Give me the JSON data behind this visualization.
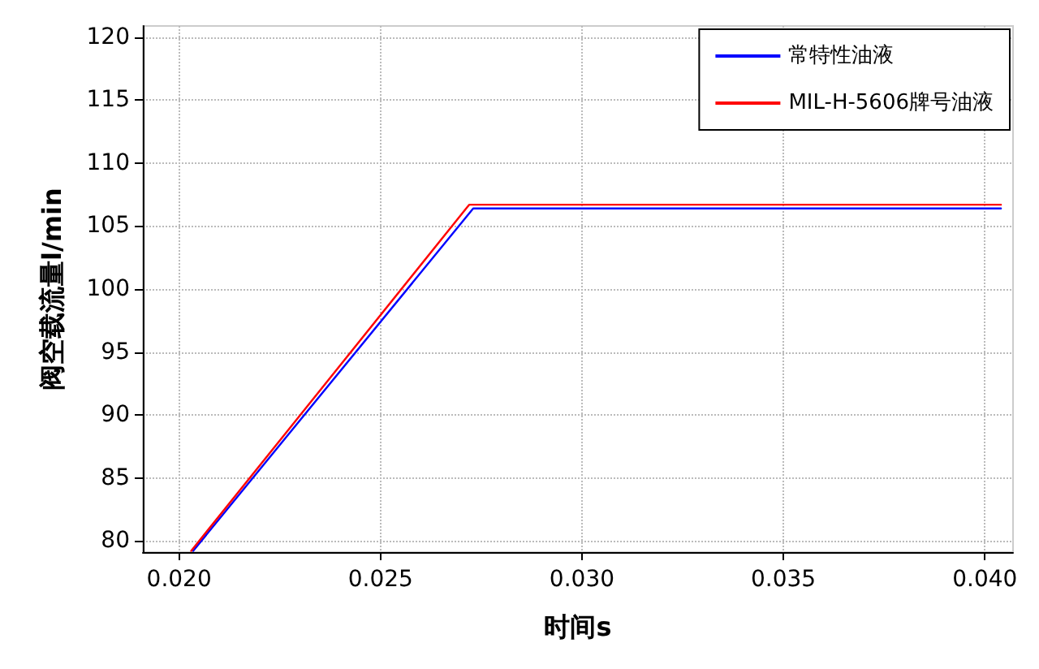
{
  "chart_data": {
    "type": "line",
    "xlabel": "时间s",
    "ylabel": "阀空载流量l/min",
    "xlim": [
      0.0191,
      0.0407
    ],
    "xticks": [
      {
        "value": 0.02,
        "label": "0.020"
      },
      {
        "value": 0.025,
        "label": "0.025"
      },
      {
        "value": 0.03,
        "label": "0.030"
      },
      {
        "value": 0.035,
        "label": "0.035"
      },
      {
        "value": 0.04,
        "label": "0.040"
      }
    ],
    "ylim": [
      79.1,
      120.9
    ],
    "yticks": [
      80,
      85,
      90,
      95,
      100,
      105,
      110,
      115,
      120
    ],
    "grid": true,
    "legend": "top right",
    "marker": "none",
    "line_style": "solid",
    "series": [
      {
        "name": "常特性油液",
        "color": "#0000ff",
        "x": [
          0.02035,
          0.0273,
          0.0404
        ],
        "values": [
          79.2,
          106.4,
          106.4
        ]
      },
      {
        "name": "MIL-H-5606牌号油液",
        "color": "#ff0000",
        "x": [
          0.0203,
          0.0272,
          0.0404
        ],
        "values": [
          79.2,
          106.7,
          106.7
        ]
      }
    ]
  }
}
